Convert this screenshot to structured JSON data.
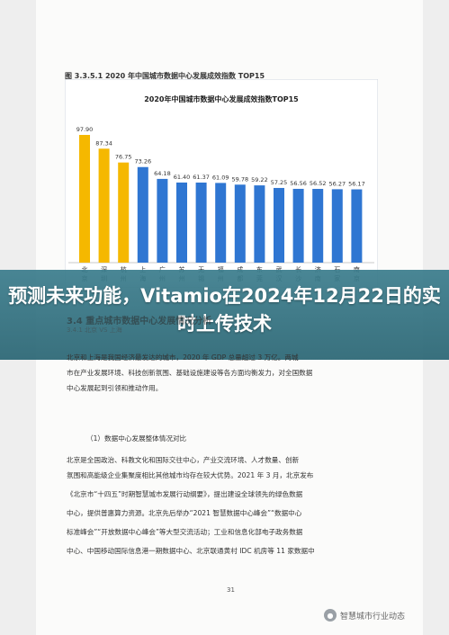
{
  "figure_label": "图 3.3.5.1 2020 年中国城市数据中心发展成效指数 TOP15",
  "overlay_title": "预测未来功能，Vitamio在2024年12月22日的实时上传技术",
  "section_heading": "3.4 重点城市数据中心发展情况分析",
  "section_subheading": "3.4.1 北京 VS 上海",
  "paragraphs": [
    "北京和上海是我国经济最发达的城市，2020 年 GDP 总量超过 3 万亿。两城",
    "市在产业发展环境、科技创新氛围、基础设施建设等各方面均衡发力，对全国数据",
    "中心发展起到引领和推动作用。",
    "（1）数据中心发展整体情况对比",
    "北京是全国政治、科教文化和国际交往中心，产业交流环境、人才数量、创新",
    "氛围和高能级企业集聚度相比其他城市均存在较大优势。2021 年 3 月，北京发布",
    "《北京市“十四五”时期智慧城市发展行动纲要》，提出建设全球领先的绿色数据",
    "中心，提供普惠算力资源。北京先后举办“2021 智慧数据中心峰会”“数据中心",
    "标准峰会”“开放数据中心峰会”等大型交流活动；工业和信息化部电子政务数据",
    "中心、中国移动国际信息港一期数据中心、北京联通黄村 IDC 机房等 11 家数据中"
  ],
  "page_number": "31",
  "watermark": "智慧城市行业动态",
  "colors": {
    "highlight": "#f5b800",
    "normal": "#2f76d2",
    "overlay": "#3a7c8c"
  },
  "chart_data": {
    "type": "bar",
    "title": "2020年中国城市数据中心发展成效指数TOP15",
    "categories": [
      "北京",
      "深圳",
      "杭州",
      "上海",
      "广州",
      "苏州",
      "无锡",
      "福州",
      "成都",
      "东莞",
      "武汉",
      "长沙",
      "济南",
      "石家庄",
      "南京"
    ],
    "category_labels": [
      [
        "北",
        "京"
      ],
      [
        "深",
        "圳"
      ],
      [
        "杭",
        "州"
      ],
      [
        "上",
        "海"
      ],
      [
        "广",
        "州"
      ],
      [
        "苏",
        "州"
      ],
      [
        "无",
        "锡"
      ],
      [
        "福",
        "州"
      ],
      [
        "成",
        "都"
      ],
      [
        "东",
        "莞"
      ],
      [
        "武",
        "汉"
      ],
      [
        "长",
        "沙"
      ],
      [
        "济",
        "南"
      ],
      [
        "石",
        "家"
      ],
      [
        "南",
        "京"
      ]
    ],
    "values": [
      97.9,
      87.34,
      76.75,
      73.26,
      64.18,
      61.4,
      61.37,
      61.09,
      59.78,
      59.22,
      57.25,
      56.56,
      56.52,
      56.27,
      56.17
    ],
    "value_labels": [
      "97.90",
      "87.34",
      "76.75",
      "73.26",
      "64.18",
      "61.40",
      "61.37",
      "61.09",
      "59.78",
      "59.22",
      "57.25",
      "56.56",
      "56.52",
      "56.27",
      "56.17"
    ],
    "highlight_count": 3,
    "ylim": [
      0,
      105
    ],
    "grid": false,
    "legend": "none"
  }
}
